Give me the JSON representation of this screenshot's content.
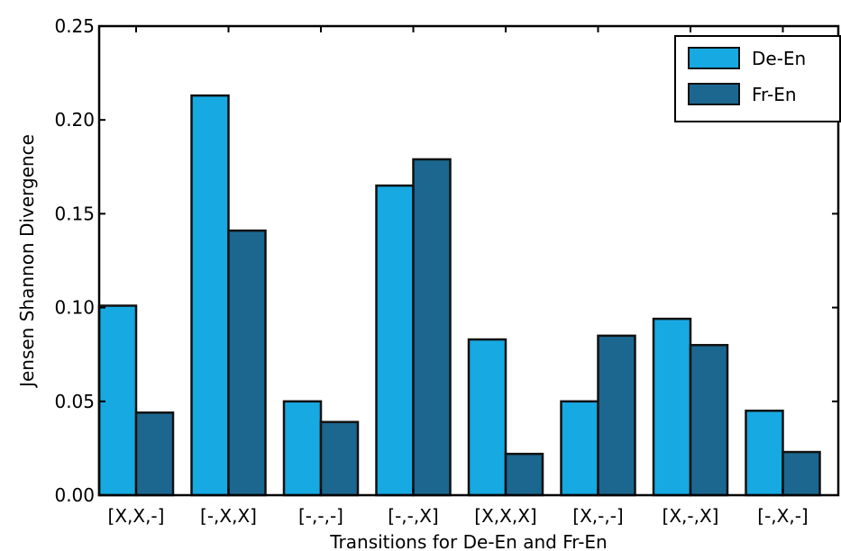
{
  "chart_data": {
    "type": "bar",
    "title": "",
    "xlabel": "Transitions for De-En and Fr-En",
    "ylabel": "Jensen Shannon Divergence",
    "categories": [
      "[X,X,-]",
      "[-,X,X]",
      "[-,-,-]",
      "[-,-,X]",
      "[X,X,X]",
      "[X,-,-]",
      "[X,-,X]",
      "[-,X,-]"
    ],
    "series": [
      {
        "name": "De-En",
        "color": "#17a9e1",
        "values": [
          0.101,
          0.213,
          0.05,
          0.165,
          0.083,
          0.05,
          0.094,
          0.045
        ]
      },
      {
        "name": "Fr-En",
        "color": "#1b6790",
        "values": [
          0.044,
          0.141,
          0.039,
          0.179,
          0.022,
          0.085,
          0.08,
          0.023
        ]
      }
    ],
    "ylim": [
      0,
      0.25
    ],
    "yticks": [
      "0.00",
      "0.05",
      "0.10",
      "0.15",
      "0.20",
      "0.25"
    ],
    "grid": false,
    "legend_position": "top-right"
  }
}
